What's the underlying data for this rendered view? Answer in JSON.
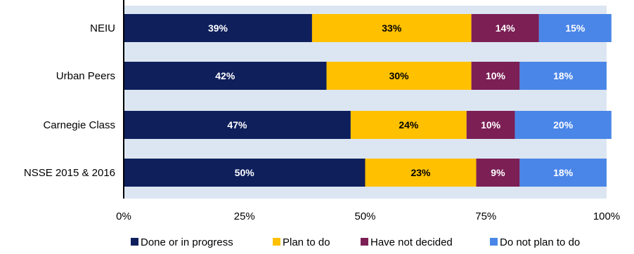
{
  "chart_data": {
    "type": "bar",
    "orientation": "horizontal",
    "stacked": true,
    "percent_scale": true,
    "categories": [
      "NEIU",
      "Urban Peers",
      "Carnegie Class",
      "NSSE 2015 & 2016"
    ],
    "series": [
      {
        "name": "Done or in progress",
        "values": [
          39,
          42,
          47,
          50
        ],
        "color": "#0e1f5c",
        "label_color": "#ffffff"
      },
      {
        "name": "Plan to do",
        "values": [
          33,
          30,
          24,
          23
        ],
        "color": "#ffc000",
        "label_color": "#000000"
      },
      {
        "name": "Have not decided",
        "values": [
          14,
          10,
          10,
          9
        ],
        "color": "#7b1f55",
        "label_color": "#ffffff"
      },
      {
        "name": "Do not plan to do",
        "values": [
          15,
          18,
          20,
          18
        ],
        "color": "#4a86e8",
        "label_color": "#ffffff"
      }
    ],
    "data_labels": [
      [
        "39%",
        "42%",
        "47%",
        "50%"
      ],
      [
        "33%",
        "30%",
        "24%",
        "23%"
      ],
      [
        "14%",
        "10%",
        "10%",
        "9%"
      ],
      [
        "15%",
        "18%",
        "20%",
        "18%"
      ]
    ],
    "xticks": [
      "0%",
      "25%",
      "50%",
      "75%",
      "100%"
    ],
    "xlim": [
      0,
      100
    ],
    "title": "",
    "xlabel": "",
    "ylabel": "",
    "plot_background": "#dce6f2",
    "grid": false,
    "legend_position": "bottom"
  }
}
